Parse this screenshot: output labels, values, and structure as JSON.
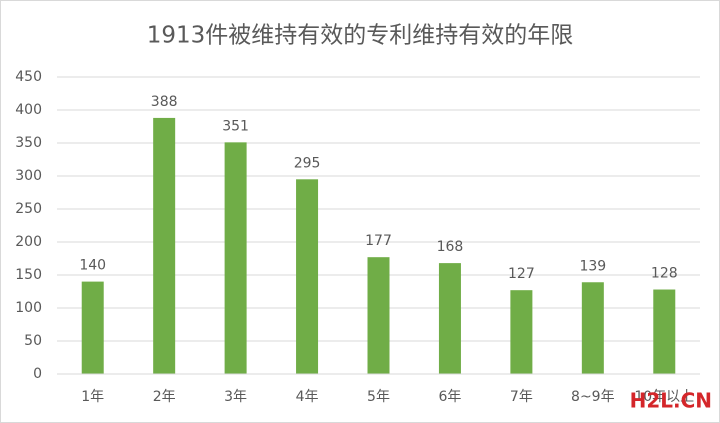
{
  "chart_data": {
    "type": "bar",
    "title": "1913件被维持有效的专利维持有效的年限",
    "categories": [
      "1年",
      "2年",
      "3年",
      "4年",
      "5年",
      "6年",
      "7年",
      "8~9年",
      "10年以上"
    ],
    "values": [
      140,
      388,
      351,
      295,
      177,
      168,
      127,
      139,
      128
    ],
    "color": "#70ad47",
    "ylim": [
      0,
      450
    ],
    "yticks": [
      0,
      50,
      100,
      150,
      200,
      250,
      300,
      350,
      400,
      450
    ],
    "grid": true,
    "watermark": "H2L.CN"
  }
}
